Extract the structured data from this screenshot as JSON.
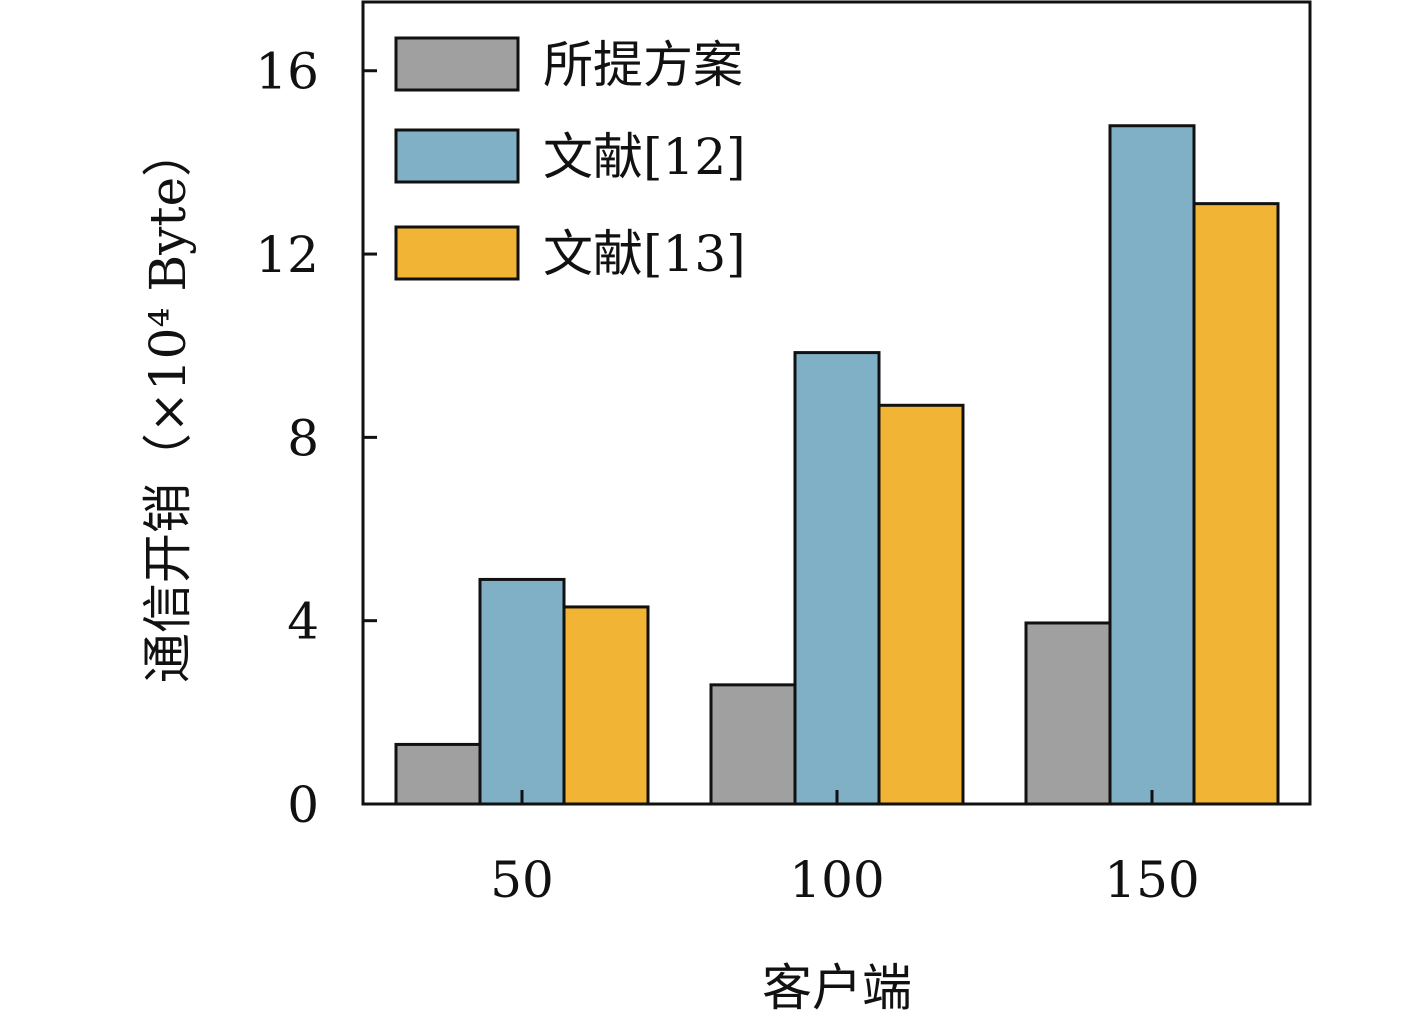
{
  "chart_data": {
    "type": "bar",
    "title": "",
    "xlabel": "客户端",
    "ylabel": "通信开销（×10⁴ Byte）",
    "categories": [
      "50",
      "100",
      "150"
    ],
    "series": [
      {
        "name": "所提方案",
        "values": [
          1.3,
          2.6,
          3.95
        ]
      },
      {
        "name": "文献[12]",
        "values": [
          4.9,
          9.85,
          14.8
        ]
      },
      {
        "name": "文献[13]",
        "values": [
          4.3,
          8.7,
          13.1
        ]
      }
    ],
    "ylim": [
      0,
      17.5
    ],
    "yticks": [
      "0",
      "4",
      "8",
      "12",
      "16"
    ],
    "legend": "top-left",
    "grid": false,
    "colors": [
      "#a0a0a0",
      "#7fb0c6",
      "#f1b434"
    ]
  }
}
